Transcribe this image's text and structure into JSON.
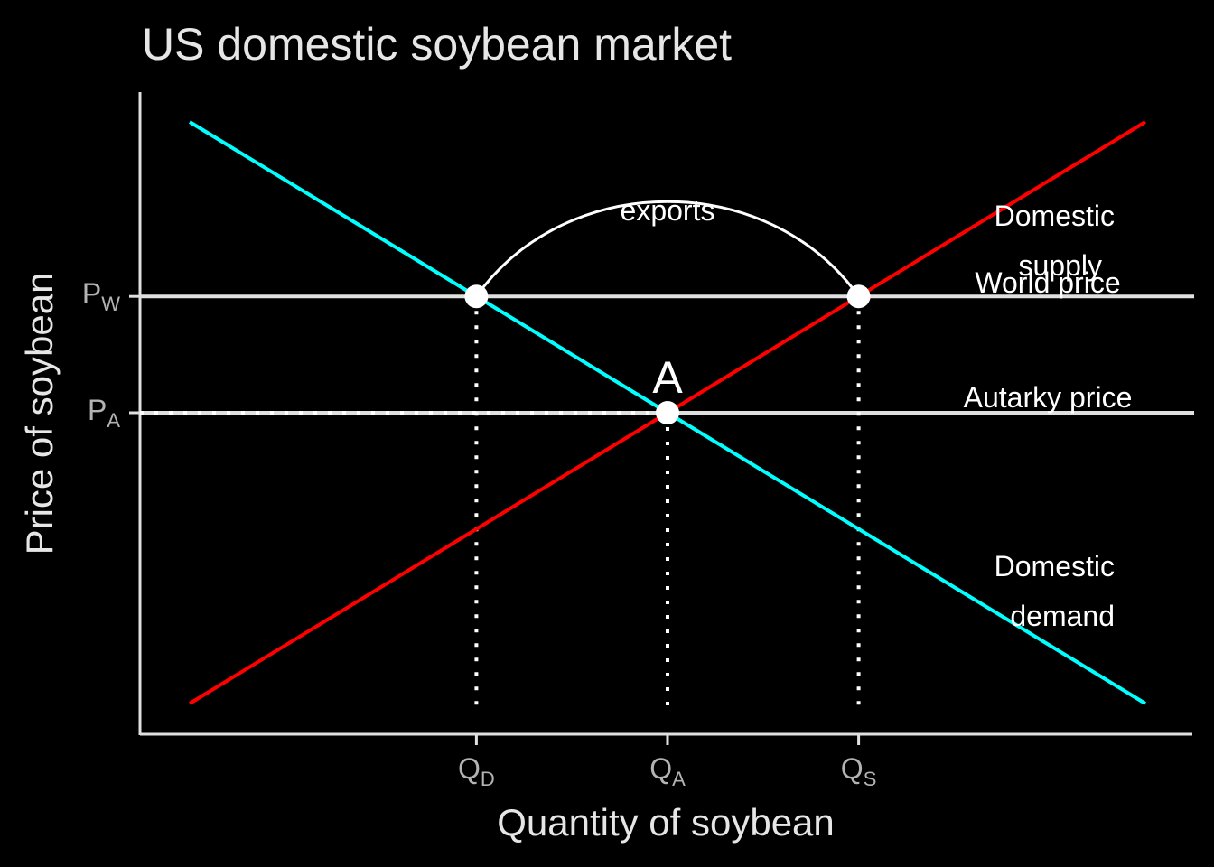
{
  "chart_data": {
    "type": "line",
    "title": "US domestic soybean market",
    "xlabel": "Quantity of soybean",
    "ylabel": "Price of soybean",
    "xlim": [
      0,
      10
    ],
    "ylim": [
      0,
      10
    ],
    "x_ticks": [
      {
        "value": 3,
        "main": "Q",
        "sub": "D"
      },
      {
        "value": 5,
        "main": "Q",
        "sub": "A"
      },
      {
        "value": 7,
        "main": "Q",
        "sub": "S"
      }
    ],
    "y_ticks": [
      {
        "value": 7,
        "main": "P",
        "sub": "W"
      },
      {
        "value": 5,
        "main": "P",
        "sub": "A"
      }
    ],
    "series": [
      {
        "name": "Domestic demand",
        "color": "#00FFFF",
        "x": [
          0,
          10
        ],
        "y": [
          10,
          0
        ]
      },
      {
        "name": "Domestic supply",
        "color": "#FF0000",
        "x": [
          0,
          10
        ],
        "y": [
          0,
          10
        ]
      }
    ],
    "hlines": [
      {
        "y": 7,
        "label": "World price",
        "color": "#E0E0E0"
      },
      {
        "y": 5,
        "label": "Autarky price",
        "color": "#E0E0E0"
      }
    ],
    "vlines_dotted": [
      {
        "x": 3,
        "y_top": 7
      },
      {
        "x": 5,
        "y_top": 5
      },
      {
        "x": 7,
        "y_top": 7
      }
    ],
    "points": [
      {
        "x": 3,
        "y": 7
      },
      {
        "x": 7,
        "y": 7
      },
      {
        "x": 5,
        "y": 5
      }
    ],
    "point_label": {
      "x": 5,
      "y": 5,
      "text": "A"
    },
    "arc": {
      "from": [
        3,
        7
      ],
      "to": [
        7,
        7
      ],
      "label": "exports"
    },
    "curve_labels": {
      "supply": [
        "Domestic",
        "supply"
      ],
      "demand": [
        "Domestic",
        "demand"
      ]
    },
    "grid": false
  }
}
